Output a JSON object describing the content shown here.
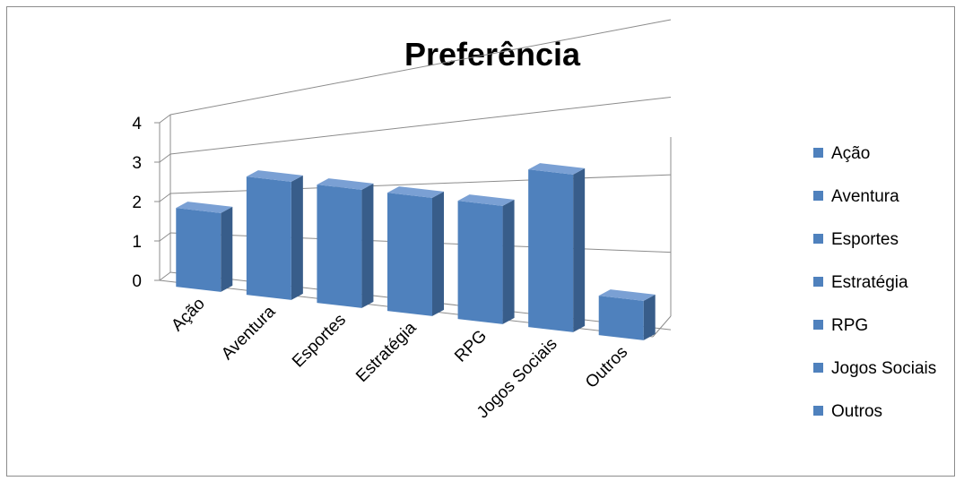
{
  "chart_data": {
    "type": "bar",
    "title": "Preferência",
    "categories": [
      "Ação",
      "Aventura",
      "Esportes",
      "Estratégia",
      "RPG",
      "Jogos Sociais",
      "Outros"
    ],
    "values": [
      2,
      3,
      3,
      3,
      3,
      4,
      1
    ],
    "ylim": [
      0,
      4
    ],
    "yticks": [
      "0",
      "1",
      "2",
      "3",
      "4"
    ],
    "xlabel": "",
    "ylabel": "",
    "grid": true,
    "three_d": true,
    "legend": {
      "placement": "right",
      "entries": [
        "Ação",
        "Aventura",
        "Esportes",
        "Estratégia",
        "RPG",
        "Jogos Sociais",
        "Outros"
      ]
    },
    "colors": {
      "bar_front": "#4f81bd",
      "bar_side": "#385d8a",
      "bar_top": "#7aa0d4",
      "grid": "#8c8c8c"
    }
  }
}
